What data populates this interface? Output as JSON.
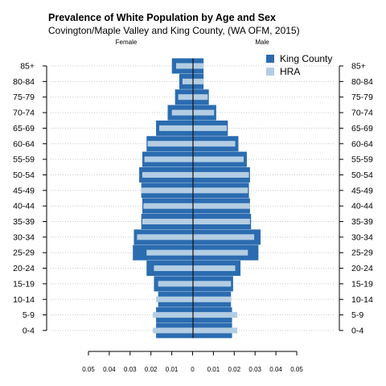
{
  "chart_data": {
    "type": "bar",
    "orientation": "horizontal-population-pyramid",
    "title": "Prevalence of White Population by Age and Sex",
    "subtitle": "Covington/Maple Valley and King County, (WA OFM, 2015)",
    "left_label": "Female",
    "right_label": "Male",
    "categories": [
      "0-4",
      "5-9",
      "10-14",
      "15-19",
      "20-24",
      "25-29",
      "30-34",
      "35-39",
      "40-44",
      "45-49",
      "50-54",
      "55-59",
      "60-64",
      "65-69",
      "70-74",
      "75-79",
      "80-84",
      "85+"
    ],
    "x_ticks": [
      "0.05",
      "0.04",
      "0.03",
      "0.02",
      "0.01",
      "0",
      "0.01",
      "0.02",
      "0.03",
      "0.04",
      "0.05"
    ],
    "xlim": [
      -0.05,
      0.05
    ],
    "legend_position": "top-right",
    "grid": "dotted horizontal",
    "series": [
      {
        "name": "King County",
        "color": "#2b6cb0",
        "female": [
          0.0175,
          0.0175,
          0.0165,
          0.0185,
          0.022,
          0.0285,
          0.028,
          0.0245,
          0.024,
          0.0245,
          0.0255,
          0.024,
          0.022,
          0.0175,
          0.012,
          0.0085,
          0.0065,
          0.01
        ],
        "male": [
          0.0185,
          0.0185,
          0.018,
          0.019,
          0.0225,
          0.031,
          0.032,
          0.0275,
          0.027,
          0.0265,
          0.027,
          0.0255,
          0.0215,
          0.0165,
          0.011,
          0.0075,
          0.005,
          0.005
        ]
      },
      {
        "name": "HRA",
        "color": "#b3cde3",
        "female": [
          0.019,
          0.019,
          0.0175,
          0.0165,
          0.0185,
          0.022,
          0.0265,
          0.024,
          0.0235,
          0.0245,
          0.024,
          0.023,
          0.0215,
          0.016,
          0.01,
          0.007,
          0.005,
          0.008
        ],
        "male": [
          0.021,
          0.021,
          0.018,
          0.018,
          0.02,
          0.026,
          0.029,
          0.027,
          0.027,
          0.026,
          0.0265,
          0.024,
          0.02,
          0.016,
          0.01,
          0.007,
          0.005,
          0.005
        ]
      }
    ]
  }
}
